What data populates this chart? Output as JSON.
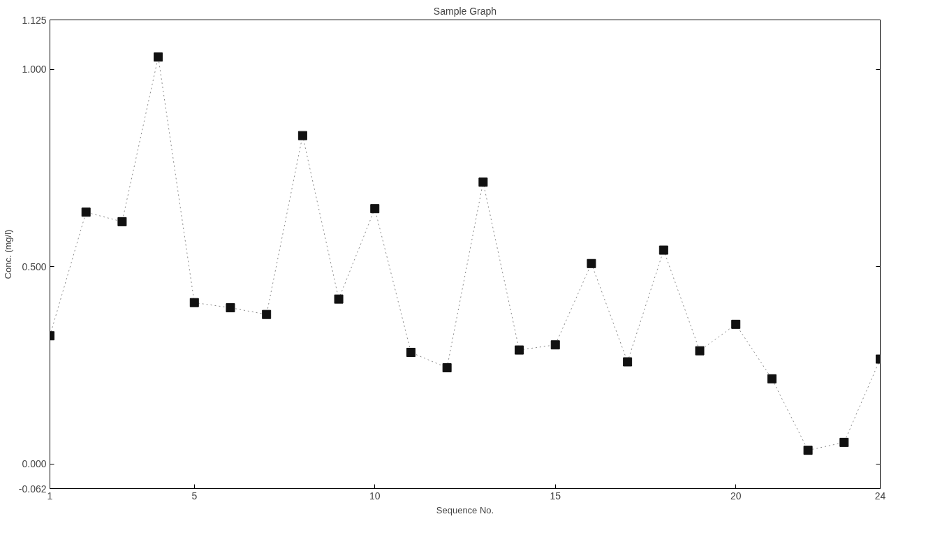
{
  "chart_data": {
    "type": "line",
    "title": "Sample Graph",
    "xlabel": "Sequence No.",
    "ylabel": "Conc. (mg/l)",
    "x": [
      1,
      2,
      3,
      4,
      5,
      6,
      7,
      8,
      9,
      10,
      11,
      12,
      13,
      14,
      15,
      16,
      17,
      18,
      19,
      20,
      21,
      22,
      23,
      24
    ],
    "series": [
      {
        "color": "#111111",
        "values": [
          0.325,
          0.638,
          0.614,
          1.031,
          0.409,
          0.396,
          0.379,
          0.832,
          0.418,
          0.647,
          0.283,
          0.244,
          0.714,
          0.289,
          0.302,
          0.508,
          0.259,
          0.542,
          0.287,
          0.354,
          0.216,
          0.035,
          0.055,
          0.266
        ]
      }
    ],
    "xlim": [
      1,
      24
    ],
    "xticks": [
      1,
      5,
      10,
      15,
      20,
      24
    ],
    "ylim": [
      -0.062,
      1.125
    ],
    "yticks": [
      {
        "value": -0.062,
        "label": "-0.062"
      },
      {
        "value": 0,
        "label": "0.000"
      },
      {
        "value": 0.5,
        "label": "0.500"
      },
      {
        "value": 1,
        "label": "1.000"
      },
      {
        "value": 1.125,
        "label": "1.125"
      }
    ],
    "marker": "square",
    "line_style": "dotted"
  }
}
